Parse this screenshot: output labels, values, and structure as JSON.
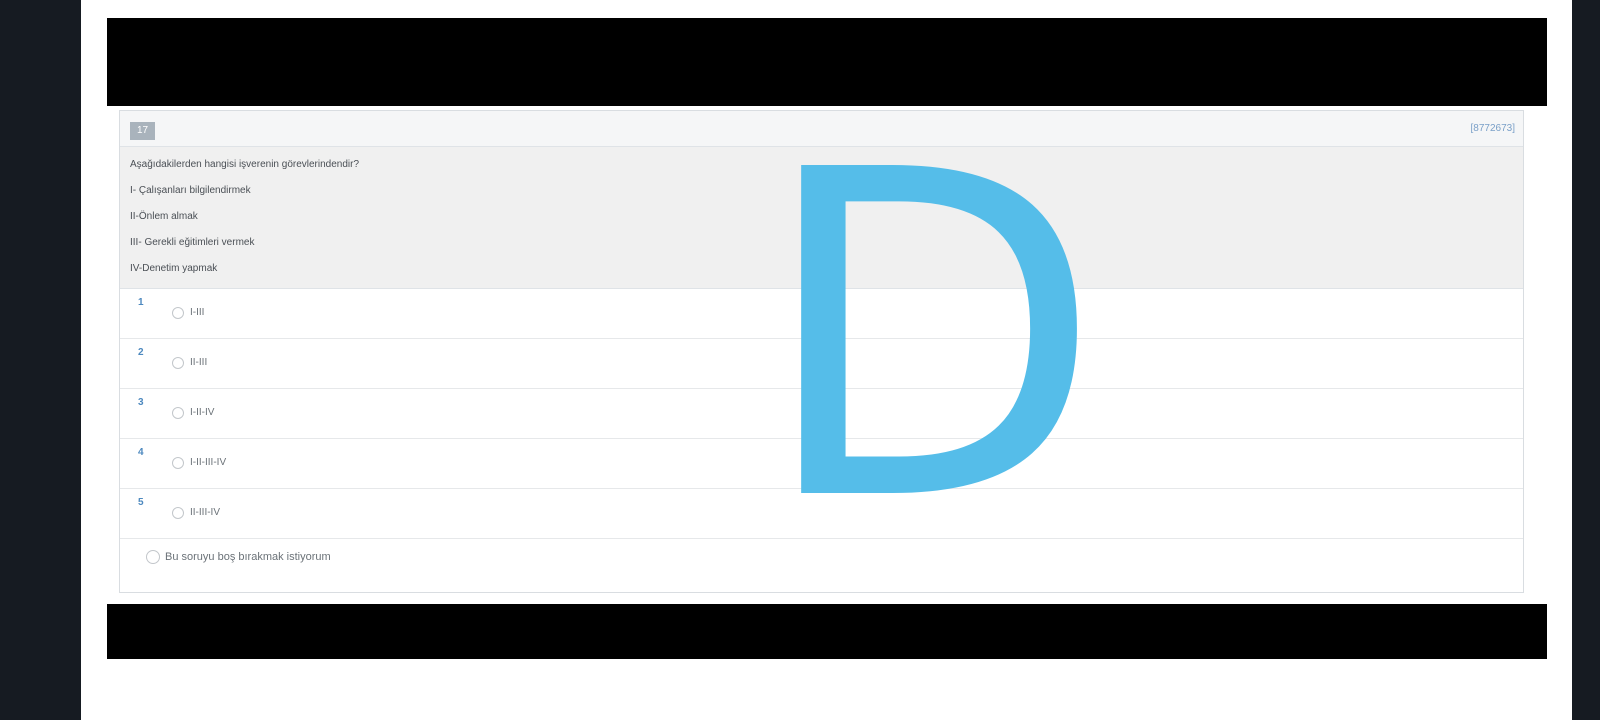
{
  "question": {
    "number": "17",
    "id": "[8772673]",
    "lines": [
      "Aşağıdakilerden hangisi işverenin görevlerindendir?",
      "I- Çalışanları bilgilendirmek",
      "II-Önlem almak",
      "III- Gerekli eğitimleri vermek",
      "IV-Denetim yapmak"
    ]
  },
  "options": [
    {
      "number": "1",
      "label": "I-III"
    },
    {
      "number": "2",
      "label": "II-III"
    },
    {
      "number": "3",
      "label": "I-II-IV"
    },
    {
      "number": "4",
      "label": "I-II-III-IV"
    },
    {
      "number": "5",
      "label": "II-III-IV"
    }
  ],
  "skip_label": "Bu soruyu boş bırakmak istiyorum",
  "overlay_letter": "D",
  "colors": {
    "overlay": "#55bde9",
    "number_badge": "#a9b3bc",
    "option_number": "#4d89bf"
  }
}
